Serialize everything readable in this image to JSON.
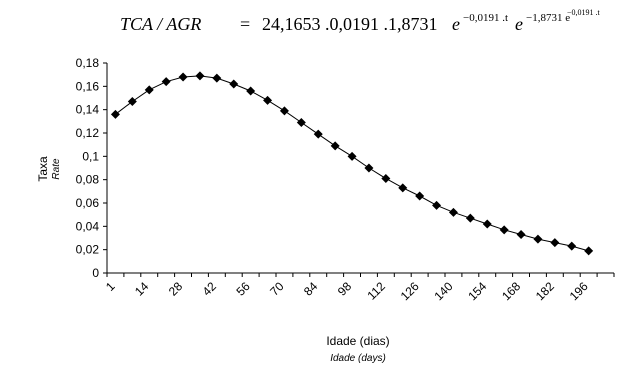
{
  "chart_data": {
    "type": "line",
    "title_parts": {
      "lhs": "TCA / AGR",
      "eq": "=",
      "coef": "24,1653 .0,0191 .1,8731",
      "e1": "e",
      "exp1": "−0,0191 .t",
      "e2": "e",
      "exp2_base": "−1,8731 e",
      "exp2_sup": "−0,0191 .t"
    },
    "ylabel": "Taxa",
    "ylabel_en": "Rate",
    "xlabel": "Idade (dias)",
    "xlabel_en": "Idade (days)",
    "ylim": [
      0,
      0.18
    ],
    "y_ticks": [
      0,
      0.02,
      0.04,
      0.06,
      0.08,
      0.1,
      0.12,
      0.14,
      0.16,
      0.18
    ],
    "y_tick_labels": [
      "0",
      "0,02",
      "0,04",
      "0,06",
      "0,08",
      "0,1",
      "0,12",
      "0,14",
      "0,16",
      "0,18"
    ],
    "x_tick_labels": [
      "1",
      "14",
      "28",
      "42",
      "56",
      "70",
      "84",
      "98",
      "112",
      "126",
      "140",
      "154",
      "168",
      "182",
      "196"
    ],
    "x_tick_positions": [
      1,
      3,
      5,
      7,
      9,
      11,
      13,
      15,
      17,
      19,
      21,
      23,
      25,
      27,
      29
    ],
    "x_categories": 30,
    "series": [
      {
        "marker": "diamond",
        "color": "#000000",
        "values": [
          0.136,
          0.147,
          0.157,
          0.164,
          0.168,
          0.169,
          0.167,
          0.162,
          0.156,
          0.148,
          0.139,
          0.129,
          0.119,
          0.109,
          0.1,
          0.09,
          0.081,
          0.073,
          0.066,
          0.058,
          0.052,
          0.047,
          0.042,
          0.037,
          0.033,
          0.029,
          0.026,
          0.023,
          0.019
        ]
      }
    ],
    "grid": false
  }
}
